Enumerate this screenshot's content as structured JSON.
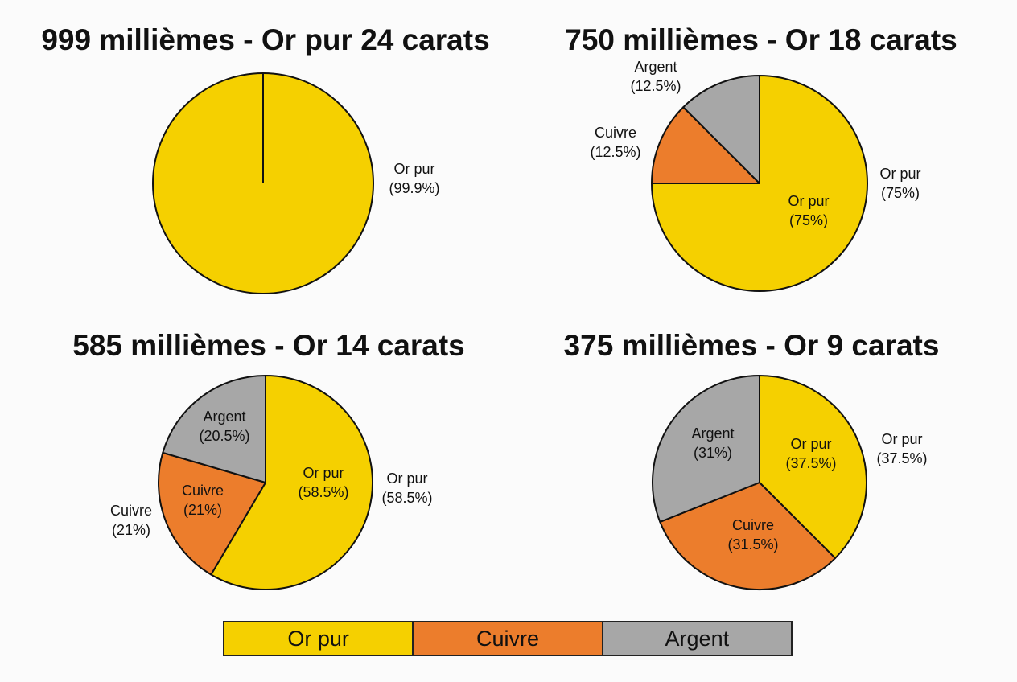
{
  "colors": {
    "or_pur": "#f5d000",
    "cuivre": "#ec7d2c",
    "argent": "#a7a7a7"
  },
  "chart_data": [
    {
      "type": "pie",
      "title": "999 millièmes - Or pur 24 carats",
      "slices": [
        {
          "name": "Or pur",
          "value": 99.9,
          "color_key": "or_pur",
          "inner_label": "",
          "outer_label": [
            "Or pur",
            "(99.9%)"
          ]
        }
      ]
    },
    {
      "type": "pie",
      "title": "750 millièmes - Or 18 carats",
      "slices": [
        {
          "name": "Or pur",
          "value": 75,
          "color_key": "or_pur",
          "inner_label": [
            "Or pur",
            "(75%)"
          ],
          "outer_label": [
            "Or pur",
            "(75%)"
          ]
        },
        {
          "name": "Cuivre",
          "value": 12.5,
          "color_key": "cuivre",
          "inner_label": "",
          "outer_label": [
            "Cuivre",
            "(12.5%)"
          ]
        },
        {
          "name": "Argent",
          "value": 12.5,
          "color_key": "argent",
          "inner_label": "",
          "outer_label": [
            "Argent",
            "(12.5%)"
          ]
        }
      ]
    },
    {
      "type": "pie",
      "title": "585 millièmes - Or 14 carats",
      "slices": [
        {
          "name": "Or pur",
          "value": 58.5,
          "color_key": "or_pur",
          "inner_label": [
            "Or pur",
            "(58.5%)"
          ],
          "outer_label": [
            "Or pur",
            "(58.5%)"
          ]
        },
        {
          "name": "Cuivre",
          "value": 21,
          "color_key": "cuivre",
          "inner_label": [
            "Cuivre",
            "(21%)"
          ],
          "outer_label": [
            "Cuivre",
            "(21%)"
          ]
        },
        {
          "name": "Argent",
          "value": 20.5,
          "color_key": "argent",
          "inner_label": [
            "Argent",
            "(20.5%)"
          ],
          "outer_label": ""
        }
      ]
    },
    {
      "type": "pie",
      "title": "375 millièmes - Or 9 carats",
      "slices": [
        {
          "name": "Or pur",
          "value": 37.5,
          "color_key": "or_pur",
          "inner_label": [
            "Or pur",
            "(37.5%)"
          ],
          "outer_label": [
            "Or pur",
            "(37.5%)"
          ]
        },
        {
          "name": "Cuivre",
          "value": 31.5,
          "color_key": "cuivre",
          "inner_label": [
            "Cuivre",
            "(31.5%)"
          ],
          "outer_label": ""
        },
        {
          "name": "Argent",
          "value": 31,
          "color_key": "argent",
          "inner_label": [
            "Argent",
            "(31%)"
          ],
          "outer_label": ""
        }
      ]
    }
  ],
  "legend": [
    {
      "label": "Or pur",
      "color_key": "or_pur"
    },
    {
      "label": "Cuivre",
      "color_key": "cuivre"
    },
    {
      "label": "Argent",
      "color_key": "argent"
    }
  ]
}
